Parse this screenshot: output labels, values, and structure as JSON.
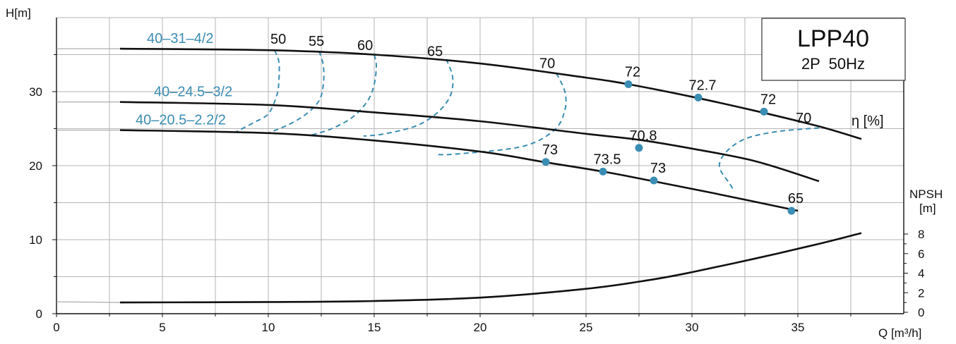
{
  "chart_data": {
    "type": "line",
    "title": "LPP40",
    "subtitle": "2P  50Hz",
    "xlabel": "Q [m³/h]",
    "ylabel": "H[m]",
    "y2label": "NPSH",
    "y2unit": "[m]",
    "eta_label": "η [%]",
    "xlim": [
      0,
      40
    ],
    "ylim": [
      0,
      40
    ],
    "y2lim": [
      0,
      8
    ],
    "x_ticks": [
      "0",
      "5",
      "10",
      "15",
      "20",
      "25",
      "30",
      "35"
    ],
    "y_ticks": [
      "0",
      "10",
      "20",
      "30"
    ],
    "y2_ticks": [
      "0",
      "2",
      "4",
      "6",
      "8"
    ],
    "grid": true,
    "colors": {
      "curve": "#111111",
      "efficiency": "#3a8db3",
      "marker": "#3a8db3",
      "grid": "#b5b5b5"
    },
    "series": [
      {
        "name": "40–31–4/2",
        "points": [
          [
            3,
            35.8
          ],
          [
            10,
            35.6
          ],
          [
            15,
            35.0
          ],
          [
            20,
            33.8
          ],
          [
            25,
            31.9
          ],
          [
            27,
            31.0
          ],
          [
            30,
            29.3
          ],
          [
            33,
            27.4
          ],
          [
            36,
            25.3
          ],
          [
            38,
            23.6
          ]
        ]
      },
      {
        "name": "40–24.5–3/2",
        "points": [
          [
            3,
            28.6
          ],
          [
            10,
            28.2
          ],
          [
            15,
            27.2
          ],
          [
            20,
            26.0
          ],
          [
            25,
            24.3
          ],
          [
            27.5,
            23.5
          ],
          [
            30,
            22.3
          ],
          [
            33,
            20.6
          ],
          [
            36,
            17.9
          ]
        ]
      },
      {
        "name": "40–20.5–2.2/2",
        "points": [
          [
            3,
            24.8
          ],
          [
            10,
            24.4
          ],
          [
            15,
            23.4
          ],
          [
            20,
            21.9
          ],
          [
            23,
            20.5
          ],
          [
            25.8,
            19.2
          ],
          [
            28,
            18.0
          ],
          [
            31,
            16.3
          ],
          [
            35,
            13.9
          ]
        ]
      },
      {
        "name": "",
        "axis": "npsh",
        "points": [
          [
            3,
            1.0
          ],
          [
            10,
            1.05
          ],
          [
            15,
            1.15
          ],
          [
            20,
            1.5
          ],
          [
            25,
            2.4
          ],
          [
            28,
            3.3
          ],
          [
            30,
            4.1
          ],
          [
            33,
            5.5
          ],
          [
            36,
            7.0
          ],
          [
            38,
            8.1
          ]
        ]
      }
    ],
    "efficiency_points": [
      {
        "label": "72",
        "x": 27.0,
        "y": 31.0
      },
      {
        "label": "72.7",
        "x": 30.3,
        "y": 29.2
      },
      {
        "label": "72",
        "x": 33.4,
        "y": 27.3
      },
      {
        "label": "70.8",
        "x": 27.5,
        "y": 22.4
      },
      {
        "label": "73",
        "x": 23.1,
        "y": 20.5
      },
      {
        "label": "73.5",
        "x": 25.8,
        "y": 19.2
      },
      {
        "label": "73",
        "x": 28.2,
        "y": 18.0
      },
      {
        "label": "65",
        "x": 34.7,
        "y": 13.9
      }
    ],
    "efficiency_contours": [
      {
        "label": "50",
        "label_pos": [
          10.1,
          36.5
        ],
        "points": [
          [
            10.3,
            35.6
          ],
          [
            10.5,
            34.0
          ],
          [
            10.5,
            31.5
          ],
          [
            10.4,
            29.5
          ],
          [
            10.0,
            27.0
          ],
          [
            9.3,
            25.8
          ],
          [
            8.5,
            24.6
          ]
        ]
      },
      {
        "label": "55",
        "label_pos": [
          11.9,
          36.2
        ],
        "points": [
          [
            12.4,
            35.5
          ],
          [
            12.6,
            33.5
          ],
          [
            12.6,
            31.0
          ],
          [
            12.4,
            28.8
          ],
          [
            11.8,
            27.0
          ],
          [
            11.0,
            25.6
          ],
          [
            10.0,
            24.4
          ]
        ]
      },
      {
        "label": "60",
        "label_pos": [
          14.2,
          35.6
        ],
        "points": [
          [
            15.0,
            35.0
          ],
          [
            15.1,
            33.5
          ],
          [
            15.0,
            31.0
          ],
          [
            14.7,
            28.8
          ],
          [
            14.0,
            26.6
          ],
          [
            13.0,
            25.0
          ],
          [
            12.0,
            24.1
          ]
        ]
      },
      {
        "label": "65",
        "label_pos": [
          17.5,
          34.8
        ],
        "points": [
          [
            18.4,
            34.4
          ],
          [
            18.7,
            32.0
          ],
          [
            18.6,
            29.5
          ],
          [
            18.0,
            27.2
          ],
          [
            17.0,
            25.4
          ],
          [
            15.5,
            24.3
          ],
          [
            14.5,
            24.0
          ]
        ]
      },
      {
        "label": "70",
        "label_pos": [
          22.8,
          33.2
        ],
        "points": [
          [
            23.6,
            32.5
          ],
          [
            24.0,
            30.0
          ],
          [
            24.0,
            27.5
          ],
          [
            23.5,
            24.8
          ],
          [
            22.0,
            22.6
          ],
          [
            19.0,
            21.6
          ],
          [
            18.0,
            21.5
          ]
        ]
      },
      {
        "label": "70",
        "label_pos": [
          34.9,
          25.8
        ],
        "points": [
          [
            36.0,
            25.1
          ],
          [
            34.0,
            24.6
          ],
          [
            32.5,
            23.6
          ],
          [
            31.6,
            21.8
          ],
          [
            31.3,
            19.8
          ],
          [
            31.8,
            17.5
          ],
          [
            32.0,
            16.5
          ]
        ]
      }
    ]
  }
}
